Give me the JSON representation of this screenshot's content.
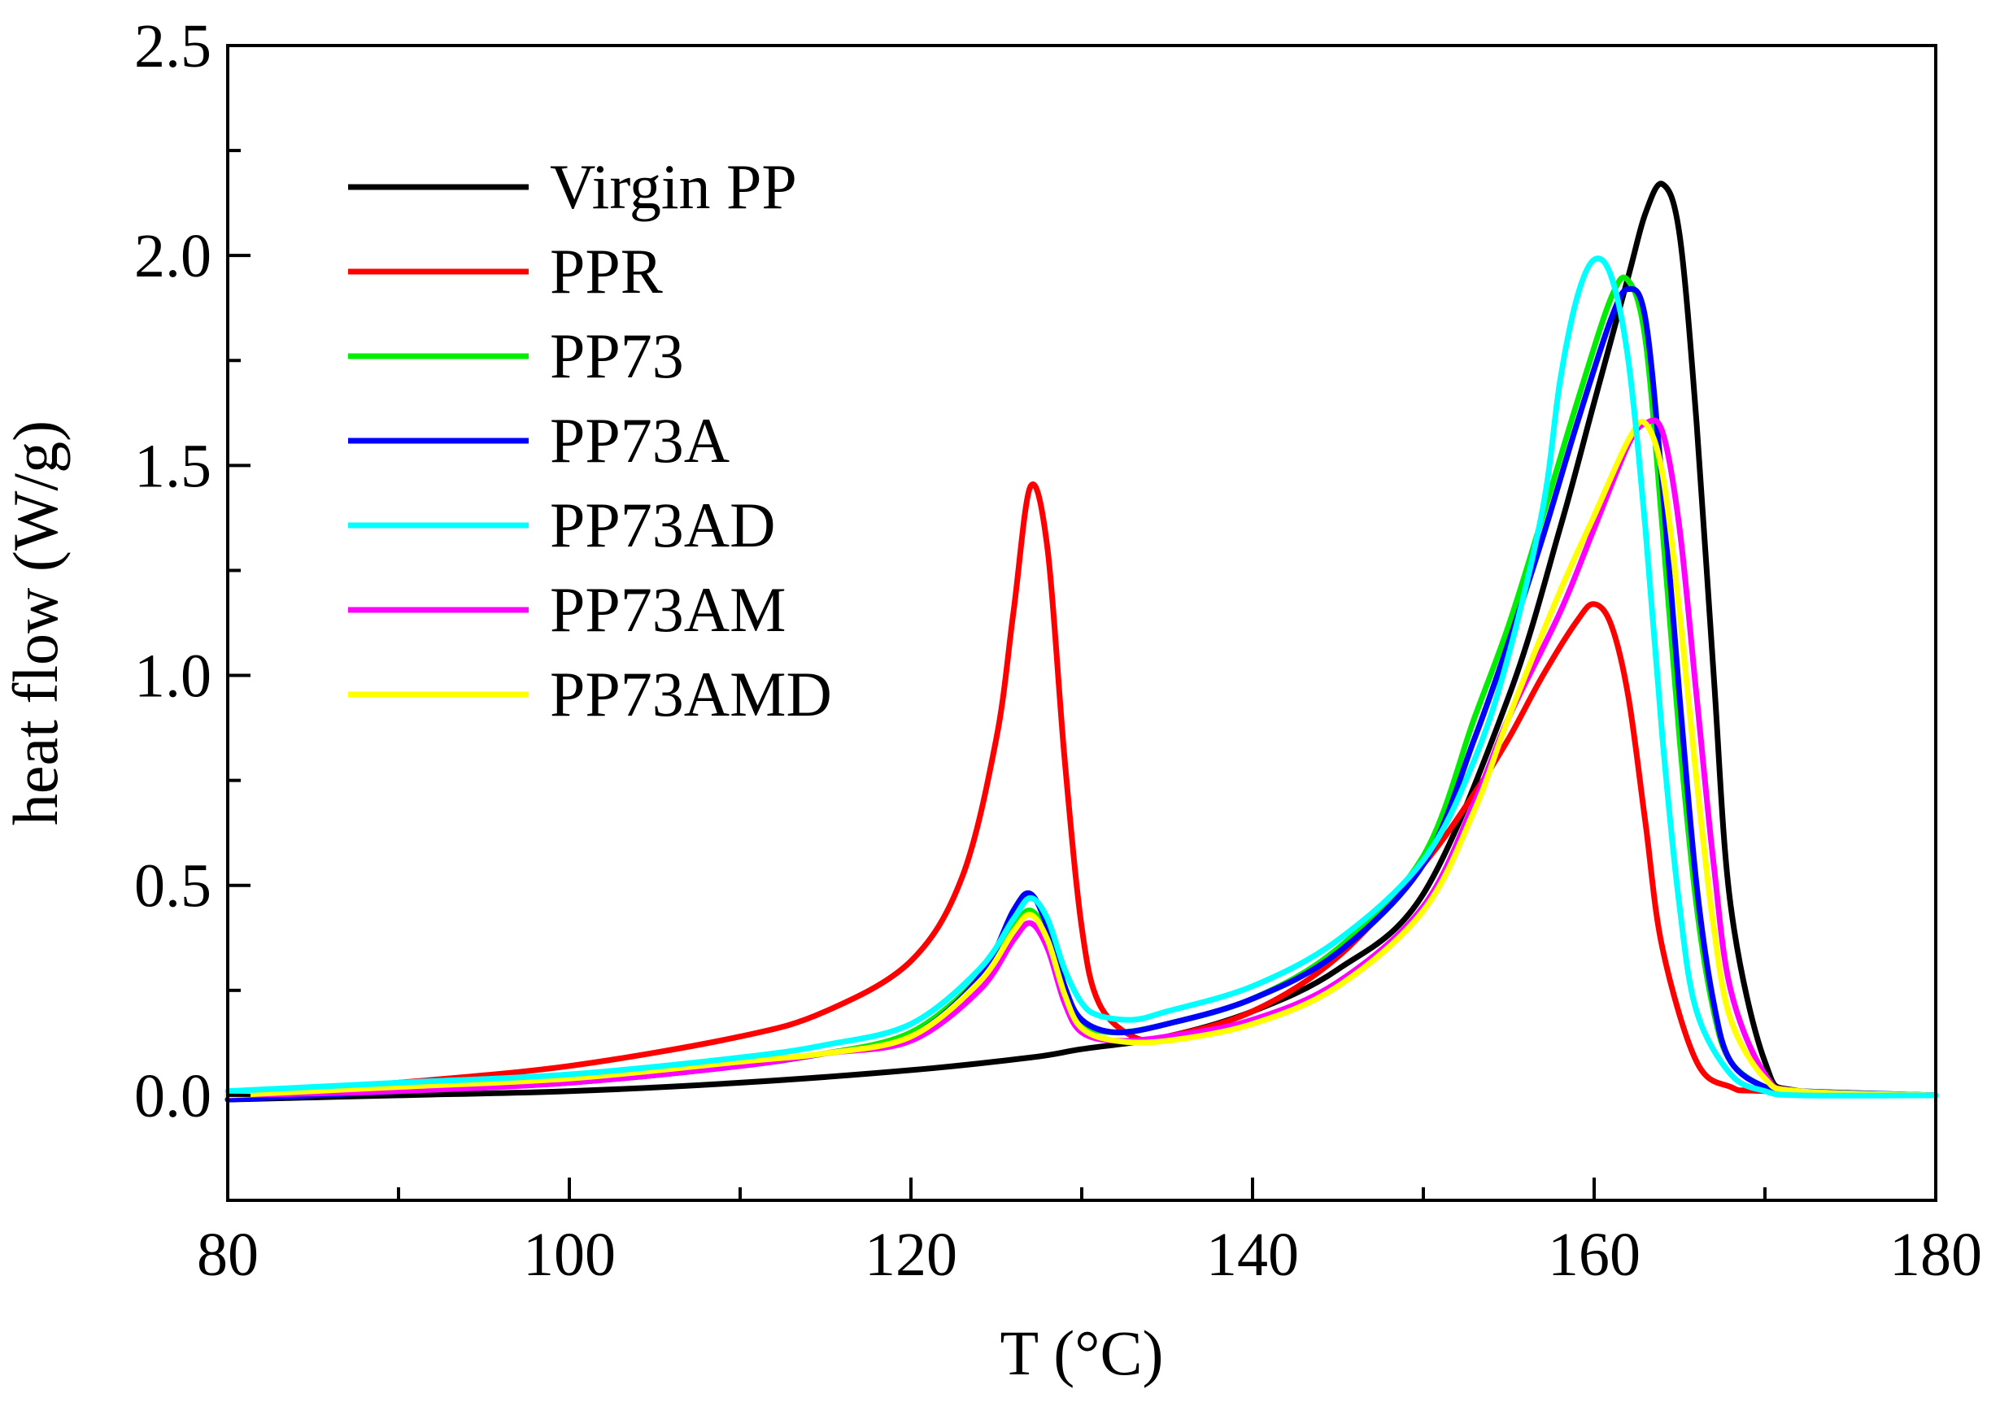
{
  "chart_data": {
    "type": "line",
    "title": "",
    "xlabel": "T (°C)",
    "ylabel": "heat flow (W/g)",
    "xlim": [
      80,
      180
    ],
    "ylim": [
      -0.25,
      2.5
    ],
    "xticks": [
      80,
      100,
      120,
      140,
      160,
      180
    ],
    "xtick_labels": [
      "80",
      "100",
      "120",
      "140",
      "160",
      "180"
    ],
    "yticks": [
      0.0,
      0.5,
      1.0,
      1.5,
      2.0,
      2.5
    ],
    "ytick_labels": [
      "0.0",
      "0.5",
      "1.0",
      "1.5",
      "2.0",
      "2.5"
    ],
    "grid": false,
    "legend_position": "top-left",
    "series": [
      {
        "name": "Virgin PP",
        "color": "#000000",
        "x": [
          80,
          90,
          100,
          110,
          120,
          127,
          130,
          135,
          140,
          145,
          150,
          155,
          158,
          160,
          162,
          163,
          164,
          165,
          166,
          167,
          168,
          170,
          172,
          180
        ],
        "y": [
          -0.01,
          0.0,
          0.01,
          0.03,
          0.06,
          0.09,
          0.11,
          0.14,
          0.2,
          0.3,
          0.48,
          0.95,
          1.35,
          1.65,
          1.95,
          2.1,
          2.17,
          2.05,
          1.6,
          1.0,
          0.45,
          0.08,
          0.01,
          0.0
        ]
      },
      {
        "name": "PPR",
        "color": "#ff0000",
        "x": [
          80,
          90,
          100,
          110,
          115,
          120,
          123,
          125,
          126,
          127,
          128,
          129,
          130,
          131,
          133,
          135,
          140,
          145,
          150,
          153,
          155,
          157,
          159,
          160,
          161,
          162,
          163,
          164,
          166,
          168,
          170,
          180
        ],
        "y": [
          0.0,
          0.03,
          0.07,
          0.14,
          0.2,
          0.32,
          0.52,
          0.85,
          1.15,
          1.45,
          1.3,
          0.8,
          0.4,
          0.22,
          0.14,
          0.14,
          0.2,
          0.33,
          0.55,
          0.72,
          0.85,
          1.0,
          1.13,
          1.17,
          1.12,
          0.95,
          0.65,
          0.35,
          0.08,
          0.02,
          0.01,
          0.0
        ]
      },
      {
        "name": "PP73",
        "color": "#00ee00",
        "x": [
          80,
          90,
          100,
          110,
          115,
          120,
          124,
          126,
          127,
          128,
          129,
          130,
          132,
          135,
          140,
          145,
          150,
          153,
          155,
          157,
          159,
          161,
          162,
          163,
          164,
          165,
          166,
          167,
          168,
          170,
          172,
          180
        ],
        "y": [
          0.0,
          0.02,
          0.04,
          0.08,
          0.1,
          0.15,
          0.28,
          0.4,
          0.44,
          0.38,
          0.24,
          0.17,
          0.15,
          0.17,
          0.23,
          0.35,
          0.57,
          0.9,
          1.12,
          1.38,
          1.65,
          1.9,
          1.94,
          1.8,
          1.35,
          0.85,
          0.45,
          0.2,
          0.08,
          0.02,
          0.01,
          0.0
        ]
      },
      {
        "name": "PP73A",
        "color": "#0000ff",
        "x": [
          80,
          90,
          100,
          110,
          115,
          120,
          124,
          126,
          127,
          128,
          129,
          130,
          132,
          135,
          140,
          145,
          150,
          153,
          155,
          157,
          159,
          161,
          162,
          163,
          164,
          165,
          166,
          167,
          168,
          170,
          172,
          180
        ],
        "y": [
          -0.01,
          0.01,
          0.03,
          0.07,
          0.1,
          0.14,
          0.28,
          0.44,
          0.48,
          0.4,
          0.26,
          0.18,
          0.15,
          0.17,
          0.23,
          0.34,
          0.55,
          0.85,
          1.08,
          1.33,
          1.6,
          1.85,
          1.92,
          1.85,
          1.45,
          0.95,
          0.5,
          0.22,
          0.08,
          0.02,
          0.01,
          0.0
        ]
      },
      {
        "name": "PP73AD",
        "color": "#00ffff",
        "x": [
          80,
          90,
          100,
          110,
          115,
          120,
          124,
          126,
          127,
          128,
          129,
          130,
          131,
          133,
          135,
          140,
          145,
          150,
          153,
          155,
          157,
          158,
          159,
          160,
          161,
          162,
          163,
          164,
          165,
          166,
          168,
          170,
          172,
          180
        ],
        "y": [
          0.01,
          0.03,
          0.05,
          0.09,
          0.12,
          0.17,
          0.3,
          0.42,
          0.47,
          0.42,
          0.3,
          0.22,
          0.19,
          0.18,
          0.2,
          0.26,
          0.37,
          0.56,
          0.8,
          1.05,
          1.4,
          1.7,
          1.9,
          1.99,
          1.95,
          1.75,
          1.35,
          0.85,
          0.45,
          0.2,
          0.05,
          0.01,
          0.0,
          0.0
        ]
      },
      {
        "name": "PP73AM",
        "color": "#ff00ff",
        "x": [
          80,
          90,
          100,
          110,
          115,
          120,
          124,
          126,
          127,
          128,
          129,
          130,
          132,
          135,
          140,
          145,
          150,
          153,
          155,
          158,
          160,
          162,
          163,
          164,
          165,
          166,
          167,
          168,
          170,
          172,
          180
        ],
        "y": [
          0.0,
          0.01,
          0.03,
          0.07,
          0.1,
          0.13,
          0.25,
          0.37,
          0.41,
          0.35,
          0.22,
          0.15,
          0.13,
          0.14,
          0.18,
          0.27,
          0.45,
          0.7,
          0.9,
          1.15,
          1.35,
          1.55,
          1.6,
          1.58,
          1.35,
          0.95,
          0.55,
          0.25,
          0.05,
          0.01,
          0.0
        ]
      },
      {
        "name": "PP73AMD",
        "color": "#ffff00",
        "x": [
          80,
          90,
          100,
          110,
          115,
          120,
          124,
          126,
          127,
          128,
          129,
          130,
          132,
          135,
          140,
          145,
          150,
          153,
          155,
          158,
          160,
          162,
          163,
          164,
          165,
          166,
          167,
          168,
          170,
          172,
          180
        ],
        "y": [
          0.0,
          0.02,
          0.04,
          0.08,
          0.1,
          0.14,
          0.27,
          0.39,
          0.43,
          0.37,
          0.24,
          0.16,
          0.13,
          0.13,
          0.17,
          0.26,
          0.44,
          0.68,
          0.9,
          1.2,
          1.38,
          1.56,
          1.6,
          1.48,
          1.15,
          0.75,
          0.4,
          0.18,
          0.04,
          0.01,
          0.0
        ]
      }
    ]
  }
}
